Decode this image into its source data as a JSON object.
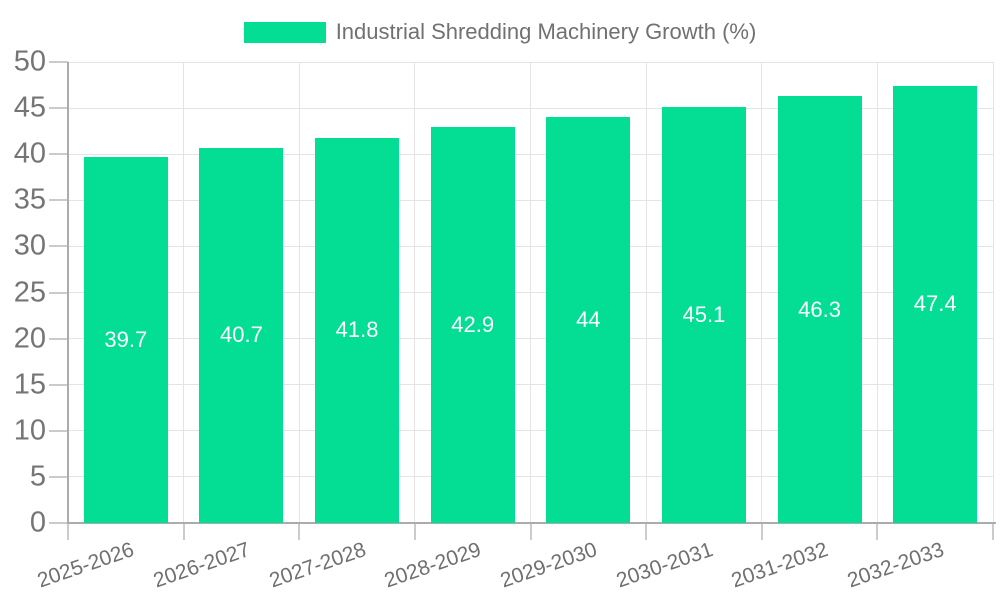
{
  "chart_data": {
    "type": "bar",
    "title": "Industrial Shredding Machinery Growth (%)",
    "categories": [
      "2025-2026",
      "2026-2027",
      "2027-2028",
      "2028-2029",
      "2029-2030",
      "2030-2031",
      "2031-2032",
      "2032-2033"
    ],
    "values": [
      39.7,
      40.7,
      41.8,
      42.9,
      44,
      45.1,
      46.3,
      47.4
    ],
    "value_labels": [
      "39.7",
      "40.7",
      "41.8",
      "42.9",
      "44",
      "45.1",
      "46.3",
      "47.4"
    ],
    "xlabel": "",
    "ylabel": "",
    "ylim": [
      0,
      50
    ],
    "ytick_step": 5,
    "ytick_labels": [
      "0",
      "5",
      "10",
      "15",
      "20",
      "25",
      "30",
      "35",
      "40",
      "45",
      "50"
    ],
    "grid": "on",
    "legend_position": "top-center",
    "value_label_position": "center-of-bar",
    "colors": {
      "bar": "#04DD94",
      "bar_value_text": "#FFFFFF",
      "legend_text": "#717171",
      "axis_tick_text": "#757575",
      "x_tick_text": "#707070",
      "grid_line": "#E4E4E4",
      "axis_line": "#ACACAC",
      "tick_line": "#CBCBCB",
      "background": "#FFFFFF"
    }
  }
}
